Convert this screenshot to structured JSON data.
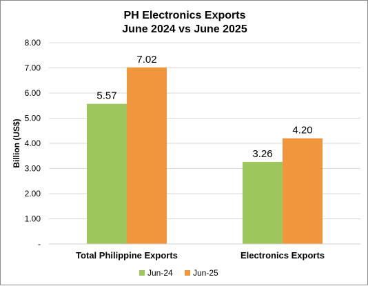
{
  "chart_data": {
    "type": "bar",
    "title": "PH Electronics Exports",
    "subtitle": "June 2024 vs June 2025",
    "ylabel": "Billion (US$)",
    "xlabel": "",
    "categories": [
      "Total Philippine Exports",
      "Electronics Exports"
    ],
    "series": [
      {
        "name": "Jun-24",
        "values": [
          5.57,
          3.26
        ],
        "labels": [
          "5.57",
          "3.26"
        ],
        "color": "#9dc75c"
      },
      {
        "name": "Jun-25",
        "values": [
          7.02,
          4.2
        ],
        "labels": [
          "7.02",
          "4.20"
        ],
        "color": "#f0963c"
      }
    ],
    "ylim": [
      0,
      8
    ],
    "yticks": [
      {
        "value": 0,
        "label": "-"
      },
      {
        "value": 1,
        "label": "1.00"
      },
      {
        "value": 2,
        "label": "2.00"
      },
      {
        "value": 3,
        "label": "3.00"
      },
      {
        "value": 4,
        "label": "4.00"
      },
      {
        "value": 5,
        "label": "5.00"
      },
      {
        "value": 6,
        "label": "6.00"
      },
      {
        "value": 7,
        "label": "7.00"
      },
      {
        "value": 8,
        "label": "8.00"
      }
    ],
    "grid": true,
    "legend_position": "bottom"
  }
}
